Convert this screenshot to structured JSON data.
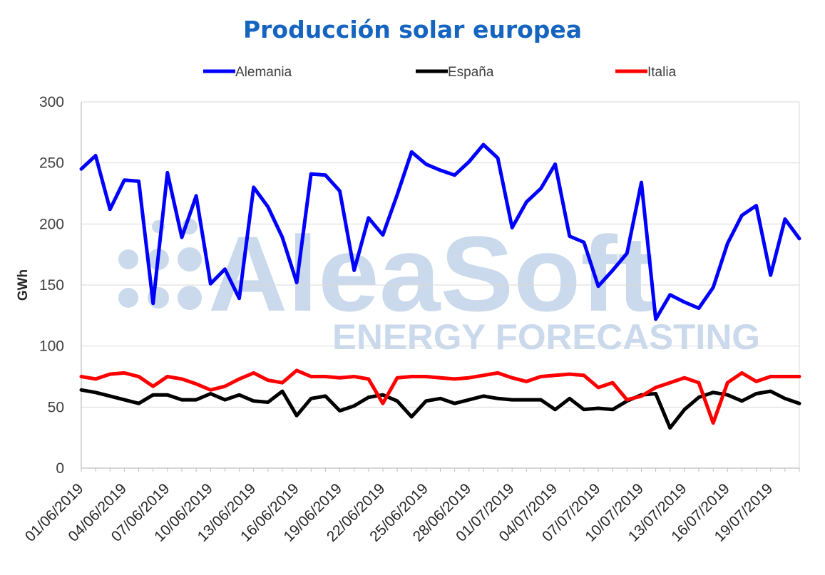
{
  "chart_data": {
    "type": "line",
    "title": "Producción solar europea",
    "xlabel": "",
    "ylabel": "GWh",
    "ylim": [
      0,
      300
    ],
    "yticks": [
      0,
      50,
      100,
      150,
      200,
      250,
      300
    ],
    "grid": "horizontal",
    "legend_position": "top",
    "x": [
      "01/06/2019",
      "02/06/2019",
      "03/06/2019",
      "04/06/2019",
      "05/06/2019",
      "06/06/2019",
      "07/06/2019",
      "08/06/2019",
      "09/06/2019",
      "10/06/2019",
      "11/06/2019",
      "12/06/2019",
      "13/06/2019",
      "14/06/2019",
      "15/06/2019",
      "16/06/2019",
      "17/06/2019",
      "18/06/2019",
      "19/06/2019",
      "20/06/2019",
      "21/06/2019",
      "22/06/2019",
      "23/06/2019",
      "24/06/2019",
      "25/06/2019",
      "26/06/2019",
      "27/06/2019",
      "28/06/2019",
      "29/06/2019",
      "30/06/2019",
      "01/07/2019",
      "02/07/2019",
      "03/07/2019",
      "04/07/2019",
      "05/07/2019",
      "06/07/2019",
      "07/07/2019",
      "08/07/2019",
      "09/07/2019",
      "10/07/2019",
      "11/07/2019",
      "12/07/2019",
      "13/07/2019",
      "14/07/2019",
      "15/07/2019",
      "16/07/2019",
      "17/07/2019",
      "18/07/2019",
      "19/07/2019",
      "20/07/2019",
      "21/07/2019"
    ],
    "x_tick_labels": [
      "01/06/2019",
      "04/06/2019",
      "07/06/2019",
      "10/06/2019",
      "13/06/2019",
      "16/06/2019",
      "19/06/2019",
      "22/06/2019",
      "25/06/2019",
      "28/06/2019",
      "01/07/2019",
      "04/07/2019",
      "07/07/2019",
      "10/07/2019",
      "13/07/2019",
      "16/07/2019",
      "19/07/2019"
    ],
    "series": [
      {
        "name": "Alemania",
        "color": "#0000ff",
        "values": [
          245,
          256,
          212,
          236,
          235,
          135,
          242,
          189,
          223,
          151,
          163,
          139,
          230,
          214,
          189,
          152,
          241,
          240,
          227,
          162,
          205,
          191,
          224,
          259,
          249,
          244,
          240,
          251,
          265,
          254,
          197,
          218,
          229,
          249,
          190,
          185,
          149,
          162,
          176,
          234,
          122,
          142,
          136,
          131,
          148,
          184,
          207,
          215,
          158,
          204,
          188
        ]
      },
      {
        "name": "España",
        "color": "#000000",
        "values": [
          64,
          62,
          59,
          56,
          53,
          60,
          60,
          56,
          56,
          61,
          56,
          60,
          55,
          54,
          63,
          43,
          57,
          59,
          47,
          51,
          58,
          60,
          55,
          42,
          55,
          57,
          53,
          56,
          59,
          57,
          56,
          56,
          56,
          48,
          57,
          48,
          49,
          48,
          55,
          60,
          61,
          33,
          48,
          58,
          62,
          60,
          55,
          61,
          63,
          57,
          53
        ]
      },
      {
        "name": "Italia",
        "color": "#ff0000",
        "values": [
          75,
          73,
          77,
          78,
          75,
          67,
          75,
          73,
          69,
          64,
          67,
          73,
          78,
          72,
          70,
          80,
          75,
          75,
          74,
          75,
          73,
          53,
          74,
          75,
          75,
          74,
          73,
          74,
          76,
          78,
          74,
          71,
          75,
          76,
          77,
          76,
          66,
          70,
          56,
          59,
          66,
          70,
          74,
          70,
          37,
          70,
          78,
          71,
          75,
          75,
          75
        ]
      }
    ]
  },
  "watermark": {
    "brand": "AleaSoft",
    "tagline": "ENERGY FORECASTING",
    "color": "#c5d5ea"
  }
}
